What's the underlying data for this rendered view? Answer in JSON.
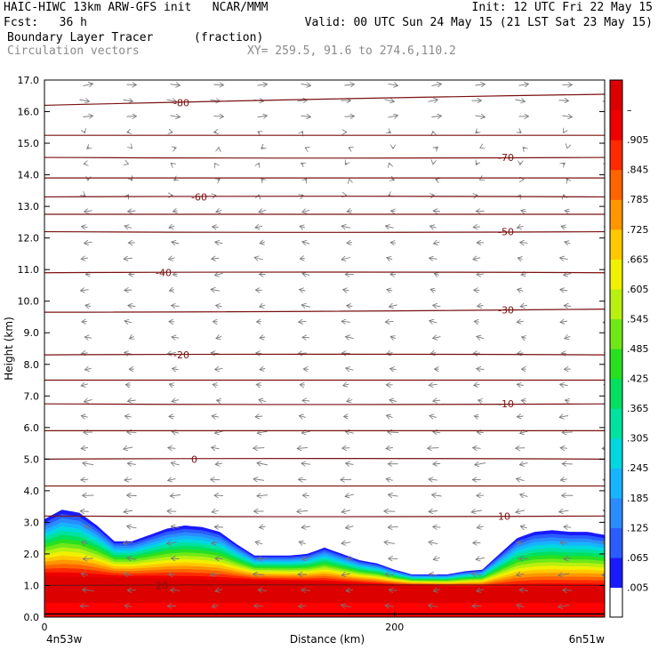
{
  "header": {
    "line1_left": "HAIC-HIWC 13km ARW-GFS init   NCAR/MMM",
    "line1_right": "Init: 12 UTC Fri 22 May 15",
    "line2_left": "Fcst:   36 h",
    "line2_right": "Valid: 00 UTC Sun 24 May 15 (21 LST Sat 23 May 15)",
    "field": "Boundary Layer Tracer",
    "field_units": "(fraction)",
    "vectors": "Circulation vectors",
    "xy": "XY= 259.5, 91.6 to 274.6,110.2"
  },
  "chart_data": {
    "type": "heatmap",
    "title": "Boundary Layer Tracer",
    "units": "(fraction)",
    "xlabel": "Distance (km)",
    "ylabel": "Height (km)",
    "xlim": [
      0,
      320
    ],
    "ylim": [
      0,
      17
    ],
    "x_ticks": [
      0,
      200
    ],
    "y_ticks": [
      "0.0",
      "1.0",
      "2.0",
      "3.0",
      "4.0",
      "5.0",
      "6.0",
      "7.0",
      "8.0",
      "9.0",
      "10.0",
      "11.0",
      "12.0",
      "13.0",
      "14.0",
      "15.0",
      "16.0",
      "17.0"
    ],
    "x_endpoint_left": "4n53w",
    "x_endpoint_right": "6n51w",
    "colorbar": {
      "labels": [
        ".005",
        ".065",
        ".125",
        ".185",
        ".245",
        ".305",
        ".365",
        ".425",
        ".485",
        ".545",
        ".605",
        ".665",
        ".725",
        ".785",
        ".845",
        ".905",
        "–"
      ],
      "colors": [
        "#ffffff",
        "#1a1aff",
        "#2a5cff",
        "#2a8cff",
        "#18b4ff",
        "#00d8e0",
        "#00e2a0",
        "#00e060",
        "#28e020",
        "#70e818",
        "#b8f010",
        "#f0f000",
        "#ffc800",
        "#ff9600",
        "#ff6400",
        "#ff2a00",
        "#ee0000",
        "#dd0000"
      ]
    },
    "temperature_contours": {
      "units": "°C",
      "levels": [
        {
          "label": "20",
          "y_left": 1.0,
          "y_right": 1.0
        },
        {
          "label": "10",
          "y_left": 3.2,
          "y_right": 3.2
        },
        {
          "label": "0",
          "y_left": 5.0,
          "y_right": 5.0
        },
        {
          "label": "-10",
          "y_left": 6.75,
          "y_right": 6.75
        },
        {
          "label": "-20",
          "y_left": 8.3,
          "y_right": 8.3
        },
        {
          "label": "-30",
          "y_left": 9.65,
          "y_right": 9.75
        },
        {
          "label": "-40",
          "y_left": 10.9,
          "y_right": 10.9
        },
        {
          "label": "-50",
          "y_left": 12.2,
          "y_right": 12.2
        },
        {
          "label": "-60",
          "y_left": 13.3,
          "y_right": 13.3
        },
        {
          "label": "-70",
          "y_left": 14.55,
          "y_right": 14.55
        },
        {
          "label": "-80",
          "y_left": 16.2,
          "y_right": 16.55
        }
      ],
      "extra_levels_y": [
        4.15,
        5.9,
        7.5,
        12.75,
        13.9,
        15.25
      ]
    },
    "tracer_top_km": {
      "x": [
        0,
        10,
        20,
        30,
        40,
        50,
        60,
        70,
        80,
        90,
        100,
        110,
        120,
        130,
        140,
        150,
        160,
        170,
        180,
        190,
        200,
        210,
        220,
        230,
        240,
        250,
        260,
        270,
        280,
        290,
        300,
        310,
        320
      ],
      "y": [
        3.1,
        3.4,
        3.3,
        2.9,
        2.4,
        2.4,
        2.6,
        2.8,
        2.9,
        2.85,
        2.7,
        2.3,
        1.95,
        1.95,
        1.95,
        2.0,
        2.2,
        2.0,
        1.8,
        1.7,
        1.5,
        1.35,
        1.35,
        1.35,
        1.45,
        1.5,
        2.0,
        2.5,
        2.7,
        2.75,
        2.7,
        2.7,
        2.6
      ]
    },
    "tracer_red_top_km": {
      "x": [
        0,
        40,
        80,
        120,
        160,
        200,
        240,
        280,
        320
      ],
      "y": [
        1.3,
        1.25,
        1.2,
        1.15,
        1.1,
        1.0,
        0.95,
        0.95,
        0.95
      ]
    }
  }
}
